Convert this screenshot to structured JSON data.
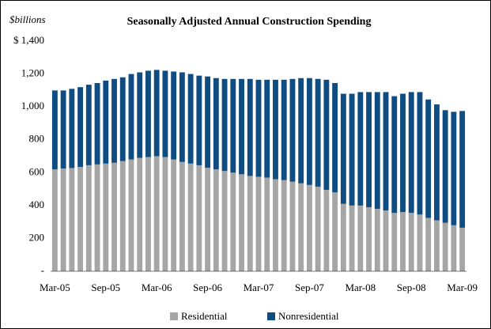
{
  "chart_data": {
    "type": "stacked_bar",
    "title": "Seasonally Adjusted Annual Construction Spending",
    "y_label": "$billions",
    "categories": [
      "Mar-05",
      null,
      null,
      null,
      null,
      null,
      "Sep-05",
      null,
      null,
      null,
      null,
      null,
      "Mar-06",
      null,
      null,
      null,
      null,
      null,
      "Sep-06",
      null,
      null,
      null,
      null,
      null,
      "Mar-07",
      null,
      null,
      null,
      null,
      null,
      "Sep-07",
      null,
      null,
      null,
      null,
      null,
      "Mar-08",
      null,
      null,
      null,
      null,
      null,
      "Sep-08",
      null,
      null,
      null,
      null,
      null,
      "Mar-09"
    ],
    "series": [
      {
        "name": "Residential",
        "color": "#a6a6a6",
        "values": [
          620,
          625,
          628,
          635,
          645,
          650,
          655,
          660,
          670,
          680,
          690,
          695,
          700,
          695,
          680,
          665,
          655,
          645,
          630,
          620,
          610,
          600,
          590,
          580,
          575,
          570,
          560,
          555,
          545,
          535,
          525,
          515,
          495,
          480,
          410,
          400,
          400,
          390,
          380,
          370,
          355,
          360,
          355,
          345,
          325,
          310,
          295,
          280,
          265
        ]
      },
      {
        "name": "Nonresidential",
        "color": "#0f4c81",
        "values": [
          480,
          475,
          482,
          485,
          490,
          495,
          505,
          510,
          510,
          520,
          520,
          525,
          525,
          525,
          535,
          545,
          545,
          545,
          555,
          555,
          560,
          570,
          580,
          590,
          590,
          595,
          605,
          610,
          625,
          640,
          650,
          655,
          670,
          665,
          670,
          680,
          690,
          700,
          710,
          720,
          710,
          720,
          735,
          745,
          720,
          705,
          685,
          690,
          710
        ]
      }
    ],
    "ylim": [
      0,
      1400
    ],
    "yticks": [
      {
        "value": 0,
        "label": "-"
      },
      200,
      400,
      600,
      800,
      {
        "value": 1000,
        "label": "1,000"
      },
      {
        "value": 1200,
        "label": "1,200"
      },
      {
        "value": 1400,
        "label": "$ 1,400"
      }
    ],
    "legend": "bottom"
  }
}
